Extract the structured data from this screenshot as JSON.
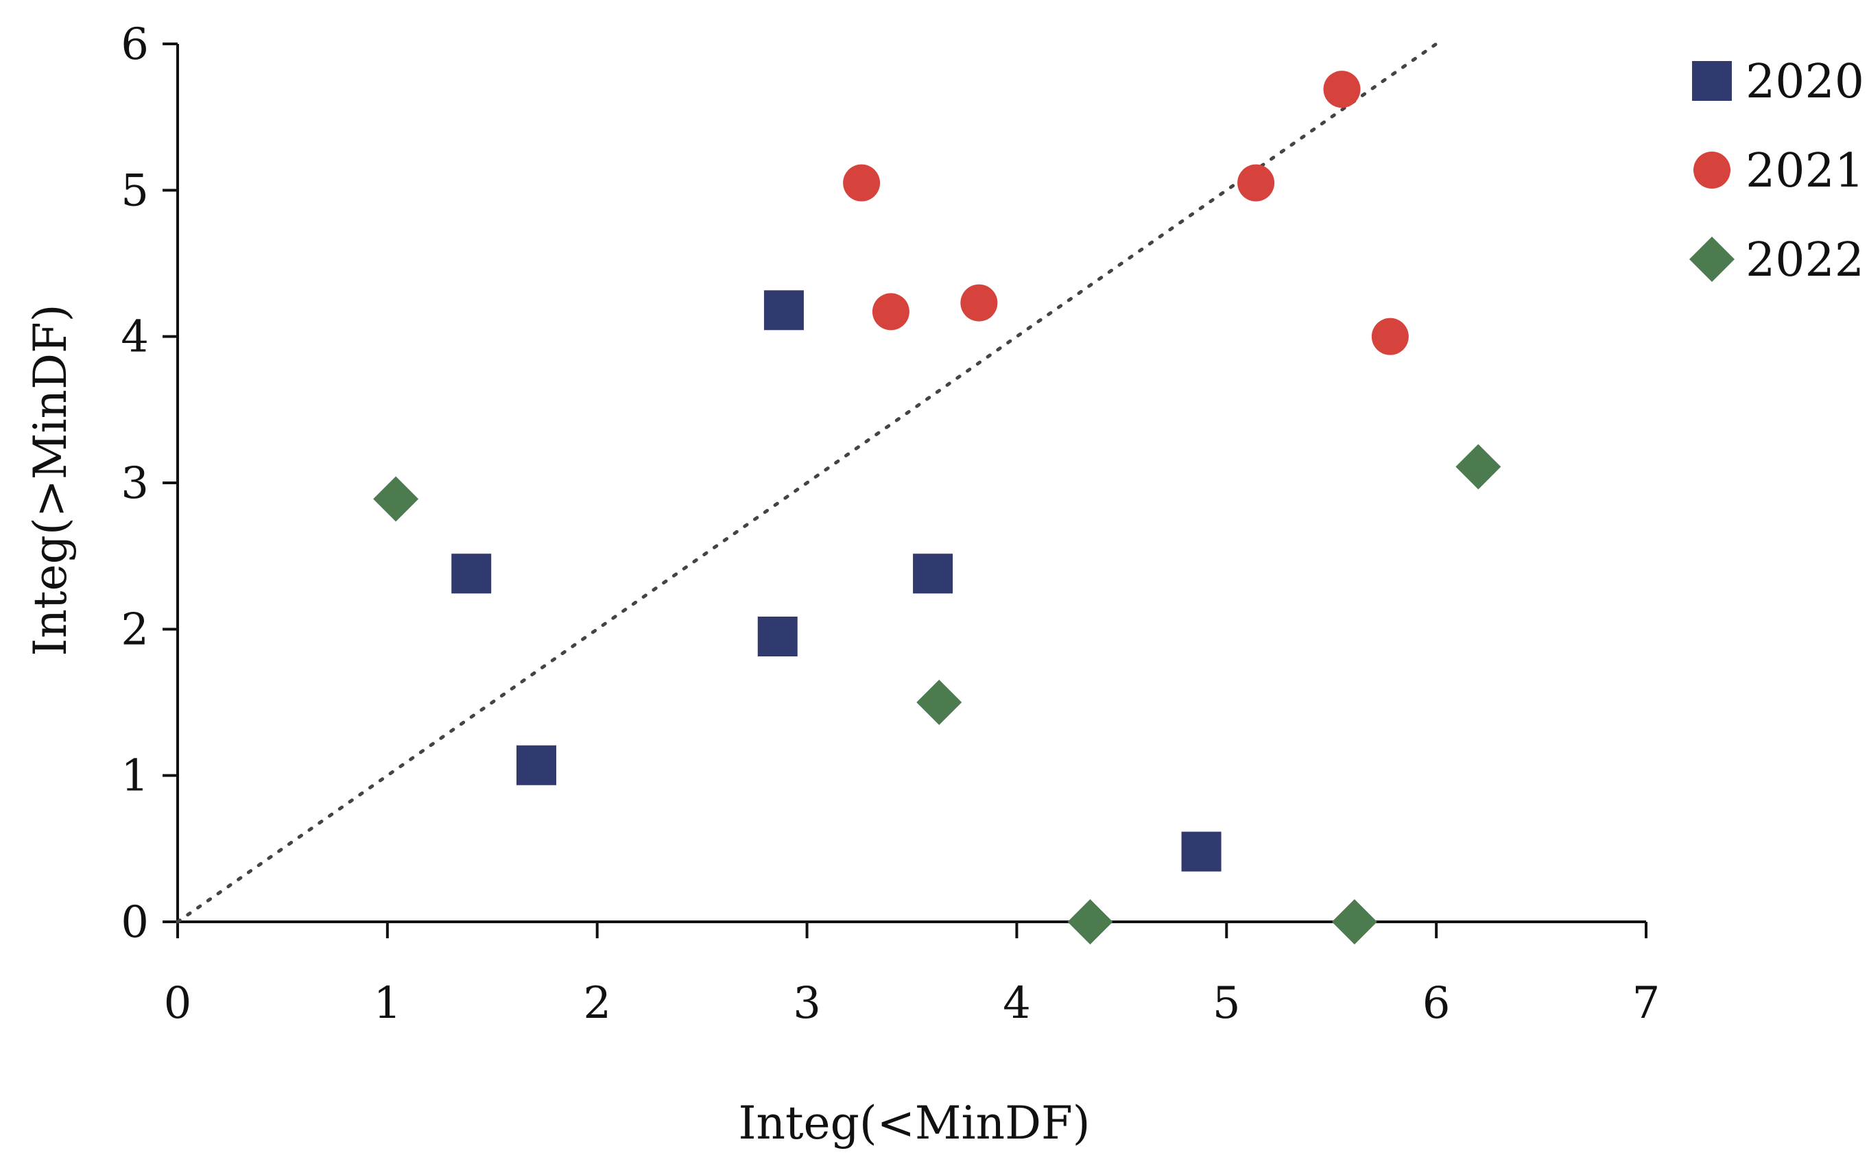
{
  "chart_data": {
    "type": "scatter",
    "xlabel": "Integ(<MinDF)",
    "ylabel": "Integ(>MinDF)",
    "xlim": [
      0,
      7
    ],
    "ylim": [
      0,
      6
    ],
    "xticks": [
      0,
      1,
      2,
      3,
      4,
      5,
      6,
      7
    ],
    "yticks": [
      0,
      1,
      2,
      3,
      4,
      5,
      6
    ],
    "grid": false,
    "legend_position": "top-right",
    "reference_line": {
      "style": "dotted",
      "from": [
        0,
        0
      ],
      "to": [
        6,
        6
      ]
    },
    "series": [
      {
        "name": "2020",
        "marker": "square",
        "color": "#313a6e",
        "points": [
          [
            1.4,
            2.38
          ],
          [
            1.71,
            1.07
          ],
          [
            2.86,
            1.95
          ],
          [
            2.89,
            4.18
          ],
          [
            3.6,
            2.38
          ],
          [
            4.88,
            0.48
          ]
        ]
      },
      {
        "name": "2021",
        "marker": "circle",
        "color": "#d6433c",
        "points": [
          [
            3.26,
            5.05
          ],
          [
            3.4,
            4.17
          ],
          [
            3.82,
            4.23
          ],
          [
            5.14,
            5.05
          ],
          [
            5.55,
            5.69
          ],
          [
            5.78,
            4.0
          ]
        ]
      },
      {
        "name": "2022",
        "marker": "diamond",
        "color": "#4b7b4f",
        "points": [
          [
            1.04,
            2.89
          ],
          [
            3.63,
            1.5
          ],
          [
            4.35,
            0.0
          ],
          [
            5.61,
            0.0
          ],
          [
            6.2,
            3.11
          ]
        ]
      }
    ]
  }
}
